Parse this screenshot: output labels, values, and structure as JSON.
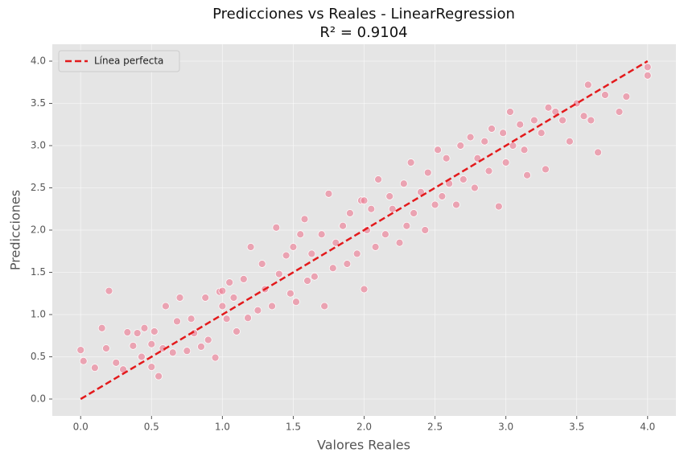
{
  "chart_data": {
    "type": "scatter",
    "title": "Predicciones vs Reales - LinearRegression",
    "subtitle": "R² = 0.9104",
    "x_label": "Valores Reales",
    "y_label": "Predicciones",
    "xlim": [
      -0.2,
      4.2
    ],
    "ylim": [
      -0.2,
      4.2
    ],
    "xticks": [
      {
        "value": 0,
        "label": "0.0"
      },
      {
        "value": 0.5,
        "label": "0.5"
      },
      {
        "value": 1,
        "label": "1.0"
      },
      {
        "value": 1.5,
        "label": "1.5"
      },
      {
        "value": 2,
        "label": "2.0"
      },
      {
        "value": 2.5,
        "label": "2.5"
      },
      {
        "value": 3,
        "label": "3.0"
      },
      {
        "value": 3.5,
        "label": "3.5"
      },
      {
        "value": 4,
        "label": "4.0"
      }
    ],
    "yticks": [
      {
        "value": 0,
        "label": "0.0"
      },
      {
        "value": 0.5,
        "label": "0.5"
      },
      {
        "value": 1,
        "label": "1.0"
      },
      {
        "value": 1.5,
        "label": "1.5"
      },
      {
        "value": 2,
        "label": "2.0"
      },
      {
        "value": 2.5,
        "label": "2.5"
      },
      {
        "value": 3,
        "label": "3.0"
      },
      {
        "value": 3.5,
        "label": "3.5"
      },
      {
        "value": 4,
        "label": "4.0"
      }
    ],
    "grid": true,
    "legend": "upper left",
    "point_color": "#ec7f97",
    "x": [
      0.0,
      0.02,
      0.1,
      0.15,
      0.18,
      0.2,
      0.25,
      0.3,
      0.33,
      0.37,
      0.4,
      0.43,
      0.45,
      0.5,
      0.52,
      0.55,
      0.58,
      0.6,
      0.65,
      0.68,
      0.7,
      0.75,
      0.78,
      0.8,
      0.85,
      0.88,
      0.9,
      0.95,
      0.98,
      1.0,
      1.03,
      1.05,
      1.08,
      1.1,
      1.15,
      1.18,
      1.2,
      1.25,
      1.28,
      1.3,
      1.35,
      1.38,
      1.4,
      1.45,
      1.48,
      1.5,
      1.52,
      1.55,
      1.58,
      1.6,
      1.63,
      1.65,
      1.7,
      1.72,
      1.75,
      1.78,
      1.8,
      1.85,
      1.88,
      1.9,
      1.95,
      1.98,
      2.0,
      2.02,
      2.05,
      2.08,
      2.1,
      2.15,
      2.18,
      2.2,
      2.25,
      2.28,
      2.3,
      2.33,
      2.35,
      2.4,
      2.43,
      2.45,
      2.5,
      2.52,
      2.55,
      2.58,
      2.6,
      2.65,
      2.68,
      2.7,
      2.75,
      2.78,
      2.8,
      2.85,
      2.88,
      2.9,
      2.95,
      2.98,
      3.0,
      3.03,
      3.05,
      3.1,
      3.13,
      3.15,
      3.2,
      3.25,
      3.28,
      3.3,
      3.35,
      3.4,
      3.45,
      3.5,
      3.55,
      3.58,
      3.6,
      3.65,
      3.7,
      3.8,
      3.85,
      4.0,
      4.0,
      0.5,
      1.0,
      2.0
    ],
    "values": [
      0.58,
      0.45,
      0.37,
      0.84,
      0.6,
      1.28,
      0.43,
      0.35,
      0.79,
      0.63,
      0.78,
      0.5,
      0.84,
      0.38,
      0.8,
      0.27,
      0.6,
      1.1,
      0.55,
      0.92,
      1.2,
      0.57,
      0.95,
      0.78,
      0.62,
      1.2,
      0.7,
      0.49,
      1.27,
      1.1,
      0.95,
      1.38,
      1.2,
      0.8,
      1.42,
      0.96,
      1.8,
      1.05,
      1.6,
      1.3,
      1.1,
      2.03,
      1.48,
      1.7,
      1.25,
      1.8,
      1.15,
      1.95,
      2.13,
      1.4,
      1.72,
      1.45,
      1.95,
      1.1,
      2.43,
      1.55,
      1.85,
      2.05,
      1.6,
      2.2,
      1.72,
      2.35,
      1.3,
      2.0,
      2.25,
      1.8,
      2.6,
      1.95,
      2.4,
      2.25,
      1.85,
      2.55,
      2.05,
      2.8,
      2.2,
      2.45,
      2.0,
      2.68,
      2.3,
      2.95,
      2.4,
      2.85,
      2.55,
      2.3,
      3.0,
      2.6,
      3.1,
      2.5,
      2.85,
      3.05,
      2.7,
      3.2,
      2.28,
      3.15,
      2.8,
      3.4,
      3.0,
      3.25,
      2.95,
      2.65,
      3.3,
      3.15,
      2.72,
      3.45,
      3.4,
      3.3,
      3.05,
      3.5,
      3.35,
      3.72,
      3.3,
      2.92,
      3.6,
      3.4,
      3.58,
      3.93,
      3.83,
      0.65,
      1.28,
      2.35
    ],
    "reference_line": {
      "name": "Línea perfecta",
      "color": "#e31a1c",
      "linestyle": "dashed",
      "x": [
        0,
        4
      ],
      "y": [
        0,
        4
      ]
    }
  }
}
